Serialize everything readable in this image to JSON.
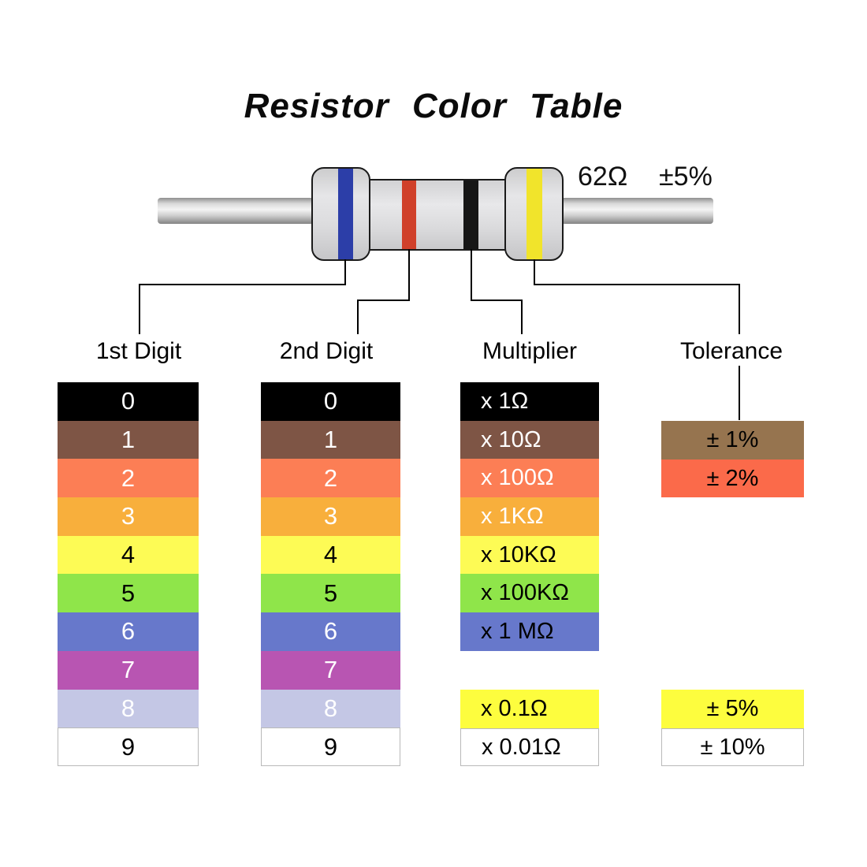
{
  "title": "Resistor Color Table",
  "resistor": {
    "value": "62Ω",
    "tolerance": "±5%",
    "bands": [
      {
        "name": "blue-band",
        "color": "#2c3ea8"
      },
      {
        "name": "red-band",
        "color": "#d0402a"
      },
      {
        "name": "black-band",
        "color": "#161616"
      },
      {
        "name": "yellow-band",
        "color": "#f1e42b"
      }
    ]
  },
  "columns": {
    "first_digit": {
      "label": "1st Digit",
      "rows": [
        {
          "text": "0",
          "bg": "#000000",
          "fg": "#ffffff"
        },
        {
          "text": "1",
          "bg": "#7e5545",
          "fg": "#ffffff"
        },
        {
          "text": "2",
          "bg": "#fc7e55",
          "fg": "#ffffff"
        },
        {
          "text": "3",
          "bg": "#f8af3c",
          "fg": "#ffffff"
        },
        {
          "text": "4",
          "bg": "#fdfb55",
          "fg": "#000000"
        },
        {
          "text": "5",
          "bg": "#8fe54a",
          "fg": "#000000"
        },
        {
          "text": "6",
          "bg": "#6778cb",
          "fg": "#ffffff"
        },
        {
          "text": "7",
          "bg": "#b855b2",
          "fg": "#ffffff"
        },
        {
          "text": "8",
          "bg": "#c4c7e5",
          "fg": "#ffffff"
        },
        {
          "text": "9",
          "bg": "#ffffff",
          "fg": "#000000",
          "border": true
        }
      ]
    },
    "second_digit": {
      "label": "2nd Digit",
      "rows": [
        {
          "text": "0",
          "bg": "#000000",
          "fg": "#ffffff"
        },
        {
          "text": "1",
          "bg": "#7e5545",
          "fg": "#ffffff"
        },
        {
          "text": "2",
          "bg": "#fc7e55",
          "fg": "#ffffff"
        },
        {
          "text": "3",
          "bg": "#f8af3c",
          "fg": "#ffffff"
        },
        {
          "text": "4",
          "bg": "#fdfb55",
          "fg": "#000000"
        },
        {
          "text": "5",
          "bg": "#8fe54a",
          "fg": "#000000"
        },
        {
          "text": "6",
          "bg": "#6778cb",
          "fg": "#ffffff"
        },
        {
          "text": "7",
          "bg": "#b855b2",
          "fg": "#ffffff"
        },
        {
          "text": "8",
          "bg": "#c4c7e5",
          "fg": "#ffffff"
        },
        {
          "text": "9",
          "bg": "#ffffff",
          "fg": "#000000",
          "border": true
        }
      ]
    },
    "multiplier": {
      "label": "Multiplier",
      "rows": [
        {
          "text": "x 1Ω",
          "bg": "#000000",
          "fg": "#ffffff"
        },
        {
          "text": "x 10Ω",
          "bg": "#7e5545",
          "fg": "#ffffff"
        },
        {
          "text": "x 100Ω",
          "bg": "#fc7e55",
          "fg": "#ffffff"
        },
        {
          "text": "x 1KΩ",
          "bg": "#f8af3c",
          "fg": "#ffffff"
        },
        {
          "text": "x 10KΩ",
          "bg": "#fdfb55",
          "fg": "#000000"
        },
        {
          "text": "x 100KΩ",
          "bg": "#8fe54a",
          "fg": "#000000"
        },
        {
          "text": "x 1 MΩ",
          "bg": "#6778cb",
          "fg": "#000000"
        }
      ],
      "extra_rows": [
        {
          "text": "x 0.1Ω",
          "bg": "#fdfd3e",
          "fg": "#000000"
        },
        {
          "text": "x 0.01Ω",
          "bg": "#ffffff",
          "fg": "#000000",
          "border": true
        }
      ]
    },
    "tolerance": {
      "label": "Tolerance",
      "rows": [
        {
          "text": "± 1%",
          "bg": "#96744f",
          "fg": "#000000"
        },
        {
          "text": "± 2%",
          "bg": "#fb6a4a",
          "fg": "#000000"
        }
      ],
      "extra_rows": [
        {
          "text": "± 5%",
          "bg": "#fdfd3e",
          "fg": "#000000"
        },
        {
          "text": "± 10%",
          "bg": "#ffffff",
          "fg": "#000000",
          "border": true
        }
      ]
    }
  }
}
